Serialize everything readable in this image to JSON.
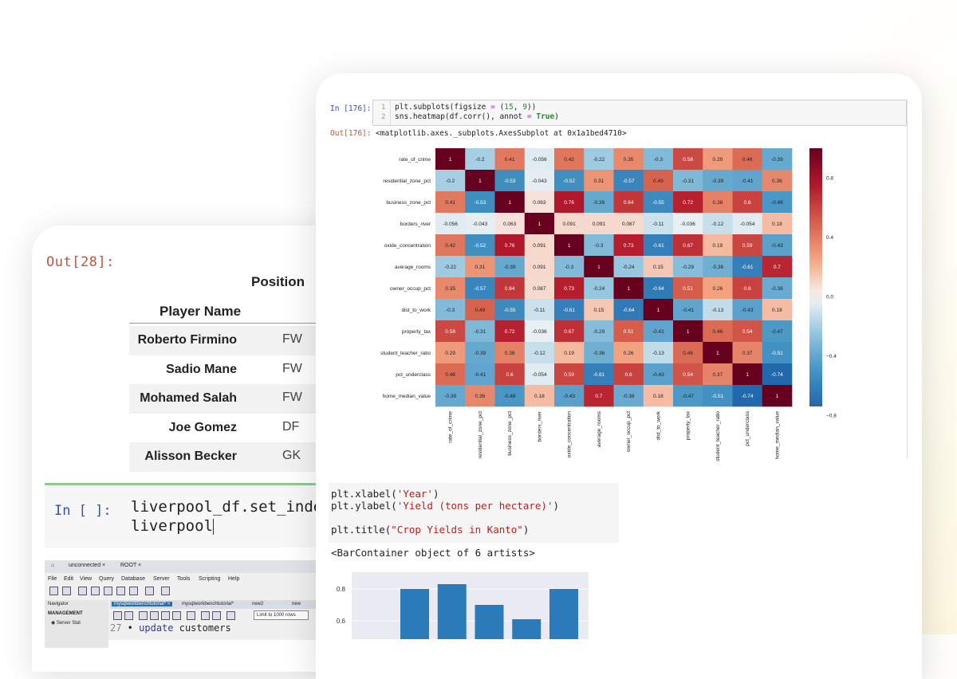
{
  "back_notebook": {
    "out_prompt": "Out[28]:",
    "table": {
      "index_header": "Position",
      "name_header": "Player Name",
      "rows": [
        {
          "name": "Roberto Firmino",
          "position": "FW"
        },
        {
          "name": "Sadio Mane",
          "position": "FW"
        },
        {
          "name": "Mohamed Salah",
          "position": "FW"
        },
        {
          "name": "Joe Gomez",
          "position": "DF"
        },
        {
          "name": "Alisson Becker",
          "position": "GK"
        }
      ]
    },
    "input_cell": {
      "prompt": "In [ ]:",
      "line1": "liverpool_df.set_inde",
      "line2": "liverpool"
    }
  },
  "workbench": {
    "tabs": [
      "unconnected",
      "ROOT"
    ],
    "menu": [
      "File",
      "Edit",
      "View",
      "Query",
      "Database",
      "Server",
      "Tools",
      "Scripting",
      "Help"
    ],
    "navigator_label": "Navigator",
    "management_label": "MANAGEMENT",
    "server_status": "Server Stat",
    "editor_tabs": [
      "mysqlworkbenchtutorial*",
      "mysqlworkbenchtutorial*",
      "new2",
      "new",
      "ba"
    ],
    "limit_select": "Limit to 1000 rows",
    "code_line_number": "27",
    "code_keyword": "update",
    "code_rest": "customers"
  },
  "front_notebook": {
    "in_prompt": "In [176]:",
    "code_line_numbers": [
      "1",
      "2"
    ],
    "code_line1_a": "plt.subplots(figsize ",
    "code_line1_op": "=",
    "code_line1_b": " (",
    "code_line1_n1": "15",
    "code_line1_c": ", ",
    "code_line1_n2": "9",
    "code_line1_d": "))",
    "code_line2_a": "sns.heatmap(df.corr(), annot ",
    "code_line2_op": "=",
    "code_line2_b": " ",
    "code_line2_true": "True",
    "code_line2_c": ")",
    "out_prompt": "Out[176]:",
    "out_text": "<matplotlib.axes._subplots.AxesSubplot at 0x1a1bed4710>",
    "cell2": {
      "line1_a": "plt.xlabel(",
      "line1_s": "'Year'",
      "line1_b": ")",
      "line2_a": "plt.ylabel(",
      "line2_s": "'Yield (tons per hectare)'",
      "line2_b": ")",
      "line3_a": "plt.title(",
      "line3_s": "\"Crop Yields in Kanto\"",
      "line3_b": ")"
    },
    "out2_text": "<BarContainer object of 6 artists>"
  },
  "chart_data": [
    {
      "type": "heatmap",
      "labels": [
        "rate_of_crime",
        "residential_zone_pct",
        "business_zone_pct",
        "borders_river",
        "oxide_concentration",
        "average_rooms",
        "owner_occup_pct",
        "dist_to_work",
        "property_tax",
        "student_teacher_ratio",
        "pct_underclass",
        "home_median_value"
      ],
      "matrix": [
        [
          1,
          -0.2,
          0.41,
          -0.056,
          0.42,
          -0.22,
          0.35,
          -0.3,
          0.58,
          0.29,
          0.46,
          -0.39
        ],
        [
          -0.2,
          1,
          -0.53,
          -0.043,
          -0.52,
          0.31,
          -0.57,
          0.49,
          -0.31,
          -0.39,
          -0.41,
          0.36
        ],
        [
          0.41,
          -0.53,
          1,
          0.063,
          0.76,
          -0.39,
          0.64,
          -0.55,
          0.72,
          0.38,
          0.6,
          -0.48
        ],
        [
          -0.056,
          -0.043,
          0.063,
          1,
          0.091,
          0.091,
          0.087,
          -0.11,
          -0.036,
          -0.12,
          -0.054,
          0.18
        ],
        [
          0.42,
          -0.52,
          0.76,
          0.091,
          1,
          -0.3,
          0.73,
          -0.61,
          0.67,
          0.19,
          0.59,
          -0.43
        ],
        [
          -0.22,
          0.31,
          -0.39,
          0.091,
          -0.3,
          1,
          -0.24,
          0.15,
          -0.29,
          -0.36,
          -0.61,
          0.7
        ],
        [
          0.35,
          -0.57,
          0.64,
          0.087,
          0.73,
          -0.24,
          1,
          -0.64,
          0.51,
          0.26,
          0.6,
          -0.38
        ],
        [
          -0.3,
          0.49,
          -0.55,
          -0.11,
          -0.61,
          0.15,
          -0.64,
          1,
          -0.41,
          -0.13,
          -0.43,
          0.18
        ],
        [
          0.58,
          -0.31,
          0.72,
          -0.036,
          0.67,
          -0.29,
          0.51,
          -0.41,
          1,
          0.46,
          0.54,
          -0.47
        ],
        [
          0.29,
          -0.39,
          0.38,
          -0.12,
          0.19,
          -0.36,
          0.26,
          -0.13,
          0.46,
          1,
          0.37,
          -0.51
        ],
        [
          0.46,
          -0.41,
          0.6,
          -0.054,
          0.59,
          -0.61,
          0.6,
          -0.43,
          0.54,
          0.37,
          1,
          -0.74
        ],
        [
          -0.39,
          0.36,
          -0.48,
          0.18,
          -0.43,
          0.7,
          -0.38,
          0.18,
          -0.47,
          -0.51,
          -0.74,
          1
        ]
      ],
      "colorbar_ticks": [
        0.8,
        0.4,
        0.0,
        -0.4,
        -0.8
      ],
      "colorbar_tick_labels": [
        "0.8",
        "0.4",
        "0.0",
        "−0.4",
        "−0.8"
      ],
      "vmin": -0.74,
      "vmax": 1,
      "colormap": "RdBu_r",
      "annotated": true
    },
    {
      "type": "bar",
      "values": [
        0.8,
        0.83,
        0.7,
        0.61,
        0.8
      ],
      "y_ticks": [
        0.8,
        0.6
      ],
      "y_tick_labels": [
        "0.8",
        "0.6"
      ],
      "ylim": [
        0.55,
        0.9
      ],
      "bar_color": "#2b7bba",
      "background": "#eaeaf2",
      "partially_visible": true
    }
  ]
}
